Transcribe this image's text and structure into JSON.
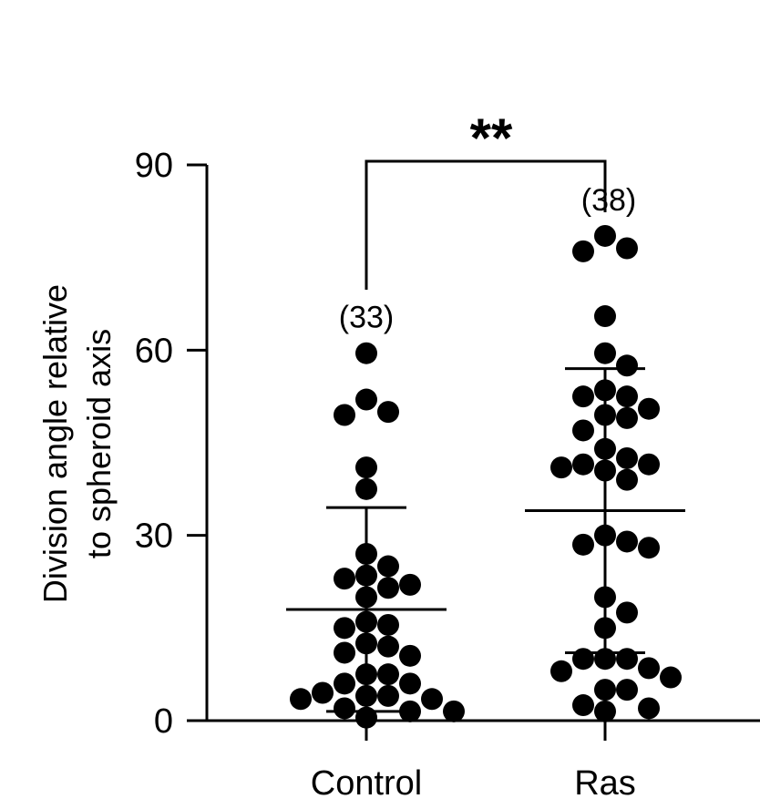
{
  "chart_data": {
    "type": "scatter",
    "ylabel": [
      "Division angle relative",
      "to spheroid axis"
    ],
    "xlabel": "",
    "ylim": [
      0,
      90
    ],
    "yticks": [
      0,
      30,
      60,
      90
    ],
    "categories": [
      "Control",
      "Ras"
    ],
    "groups": [
      {
        "category": "Control",
        "n_label": "(33)",
        "mean": 18,
        "sd_upper": 34.5,
        "sd_lower": 1.5,
        "values": [
          59.5,
          52,
          49.5,
          50,
          41,
          37.5,
          27,
          25,
          23.5,
          23,
          22,
          20,
          21.5,
          16,
          15.5,
          15,
          12.5,
          12,
          11,
          10.5,
          7.5,
          7.5,
          6,
          6,
          4.5,
          4,
          4,
          3.5,
          3.5,
          2,
          1.5,
          1.5,
          0.5
        ]
      },
      {
        "category": "Ras",
        "n_label": "(38)",
        "mean": 34,
        "sd_upper": 57,
        "sd_lower": 11,
        "values": [
          78.5,
          76.5,
          76,
          65.5,
          59.5,
          57.5,
          53.5,
          52.5,
          52.5,
          50.5,
          49.5,
          49,
          47,
          44,
          42.5,
          41.5,
          41.5,
          41,
          40.5,
          39,
          30,
          29,
          28.5,
          28,
          20,
          17.5,
          15,
          10,
          10,
          10,
          8.5,
          8,
          7,
          5,
          5,
          2.5,
          2,
          1.5
        ]
      }
    ],
    "significance": "**"
  }
}
